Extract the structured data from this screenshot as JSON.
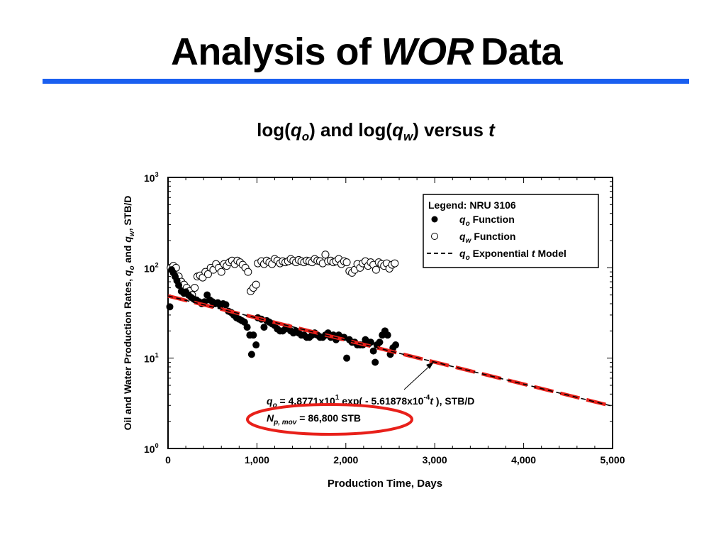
{
  "slide": {
    "title_pre": "Analysis of",
    "title_em": "WOR",
    "title_post": "Data",
    "subtitle": {
      "p1": "log(",
      "q1": "q",
      "s1": "o",
      "p2": ") and log(",
      "q2": "q",
      "s2": "w",
      "p3": ") versus ",
      "t": "t"
    }
  },
  "colors": {
    "accent_rule": "#1a5ff0",
    "model_line": "#e8201a",
    "ellipse": "#e8201a"
  },
  "chart_data": {
    "type": "scatter",
    "xlabel": "Production Time, Days",
    "ylabel": "Oil and Water Production Rates, qo and qw, STB/D",
    "ylabel_parts": [
      "Oil and Water Production Rates, ",
      "q",
      "o",
      " and ",
      "q",
      "w",
      ", STB/D"
    ],
    "xlim": [
      0,
      5000
    ],
    "ylim": [
      1,
      1000
    ],
    "y_scale": "log",
    "x_ticks": [
      0,
      1000,
      2000,
      3000,
      4000,
      5000
    ],
    "x_tick_labels": [
      "0",
      "1,000",
      "2,000",
      "3,000",
      "4,000",
      "5,000"
    ],
    "y_ticks": [
      1,
      10,
      100,
      1000
    ],
    "y_tick_base": "10",
    "y_tick_exps": [
      "0",
      "1",
      "2",
      "3"
    ],
    "legend": {
      "placement": "top-right",
      "title": "Legend: NRU 3106",
      "entries": [
        {
          "q": "q",
          "sub": "o",
          "text": "Function",
          "t": ""
        },
        {
          "q": "q",
          "sub": "w",
          "text": "Function",
          "t": ""
        },
        {
          "q": "q",
          "sub": "o",
          "text": "Exponential ",
          "t": "t",
          "post": " Model"
        }
      ]
    },
    "annotation": {
      "eq": [
        "q",
        "o",
        " = 4.8771x10",
        "1",
        " exp( - 5.61878x10",
        "-4",
        "t",
        " ), STB/D"
      ],
      "np": [
        "N",
        "p, mov",
        " = 86,800 STB"
      ]
    },
    "model": {
      "a": 48.771,
      "b": 0.000561878,
      "x_range": [
        0,
        5000
      ]
    },
    "series": [
      {
        "name": "qo Function",
        "marker": "filled-circle",
        "x": [
          20,
          40,
          60,
          80,
          100,
          120,
          150,
          180,
          200,
          230,
          260,
          290,
          320,
          350,
          380,
          410,
          440,
          470,
          500,
          530,
          560,
          590,
          620,
          650,
          680,
          710,
          740,
          770,
          800,
          830,
          860,
          890,
          920,
          940,
          960,
          990,
          1010,
          1050,
          1080,
          1110,
          1140,
          1170,
          1200,
          1230,
          1260,
          1290,
          1320,
          1350,
          1380,
          1410,
          1440,
          1470,
          1500,
          1530,
          1560,
          1590,
          1620,
          1650,
          1680,
          1710,
          1740,
          1770,
          1800,
          1830,
          1860,
          1890,
          1920,
          1950,
          1980,
          2010,
          2040,
          2070,
          2100,
          2130,
          2160,
          2190,
          2220,
          2250,
          2280,
          2310,
          2330,
          2350,
          2380,
          2410,
          2440,
          2470,
          2500,
          2530,
          2560
        ],
        "y": [
          37,
          95,
          88,
          80,
          72,
          64,
          55,
          52,
          54,
          50,
          47,
          45,
          44,
          42,
          40,
          42,
          50,
          44,
          42,
          40,
          41,
          38,
          40,
          39,
          33,
          32,
          30,
          28,
          27,
          26,
          25,
          22,
          18,
          11,
          18,
          14,
          28,
          27,
          22,
          26,
          25,
          24,
          23,
          21,
          20,
          20,
          21,
          22,
          20,
          19,
          20,
          19,
          18,
          18,
          17,
          17,
          18,
          19,
          18,
          17,
          17,
          18,
          19,
          17,
          18,
          16,
          18,
          17,
          17,
          10,
          16,
          15,
          15,
          14,
          14,
          14,
          16,
          15,
          15,
          12,
          9,
          14,
          15,
          18,
          20,
          18,
          11,
          13,
          14
        ]
      },
      {
        "name": "qw Function",
        "marker": "open-circle",
        "x": [
          30,
          60,
          90,
          120,
          150,
          180,
          210,
          240,
          270,
          300,
          330,
          360,
          390,
          420,
          450,
          480,
          510,
          540,
          570,
          600,
          630,
          660,
          690,
          720,
          750,
          780,
          810,
          840,
          870,
          900,
          930,
          960,
          990,
          1010,
          1050,
          1080,
          1110,
          1140,
          1170,
          1200,
          1230,
          1260,
          1290,
          1320,
          1350,
          1380,
          1410,
          1440,
          1470,
          1500,
          1530,
          1560,
          1590,
          1620,
          1650,
          1680,
          1710,
          1740,
          1770,
          1800,
          1830,
          1860,
          1890,
          1920,
          1950,
          1980,
          2010,
          2040,
          2070,
          2100,
          2130,
          2160,
          2190,
          2220,
          2250,
          2280,
          2310,
          2340,
          2370,
          2400,
          2430,
          2460,
          2490,
          2520,
          2550
        ],
        "y": [
          100,
          105,
          100,
          80,
          70,
          65,
          60,
          55,
          50,
          60,
          80,
          82,
          78,
          90,
          85,
          100,
          95,
          110,
          100,
          90,
          110,
          105,
          115,
          120,
          110,
          120,
          115,
          108,
          100,
          90,
          55,
          60,
          65,
          112,
          118,
          110,
          120,
          115,
          110,
          125,
          120,
          112,
          118,
          115,
          118,
          125,
          120,
          115,
          122,
          118,
          115,
          120,
          118,
          115,
          125,
          120,
          118,
          112,
          140,
          118,
          120,
          115,
          118,
          125,
          110,
          118,
          115,
          92,
          88,
          95,
          110,
          100,
          112,
          118,
          105,
          115,
          108,
          95,
          115,
          110,
          105,
          112,
          98,
          108,
          112
        ]
      }
    ]
  }
}
